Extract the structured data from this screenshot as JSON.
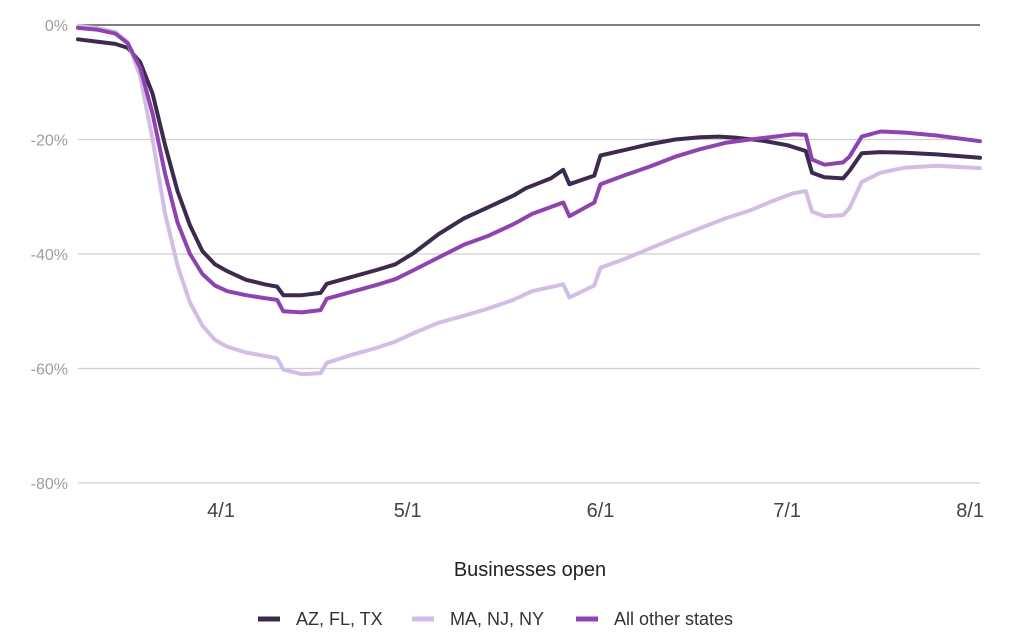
{
  "chart_data": {
    "type": "line",
    "xlabel": "Businesses open",
    "ylabel": "",
    "ylim": [
      -80,
      0
    ],
    "y_ticks": [
      {
        "value": 0,
        "label": "0%"
      },
      {
        "value": -20,
        "label": "-20%"
      },
      {
        "value": -40,
        "label": "-40%"
      },
      {
        "value": -60,
        "label": "-60%"
      },
      {
        "value": -80,
        "label": "-80%"
      }
    ],
    "x_ticks": [
      {
        "value": "2020-04-01",
        "label": "4/1"
      },
      {
        "value": "2020-05-01",
        "label": "5/1"
      },
      {
        "value": "2020-06-01",
        "label": "6/1"
      },
      {
        "value": "2020-07-01",
        "label": "7/1"
      },
      {
        "value": "2020-08-01",
        "label": "8/1"
      }
    ],
    "xlim": [
      "2020-03-09",
      "2020-08-01"
    ],
    "grid": true,
    "legend_position": "bottom",
    "series": [
      {
        "name": "AZ, FL, TX",
        "color": "#3d2a4f",
        "points": [
          [
            "2020-03-09",
            -2.5
          ],
          [
            "2020-03-12",
            -2.9
          ],
          [
            "2020-03-15",
            -3.3
          ],
          [
            "2020-03-17",
            -4.0
          ],
          [
            "2020-03-19",
            -6.5
          ],
          [
            "2020-03-21",
            -12.0
          ],
          [
            "2020-03-23",
            -21.0
          ],
          [
            "2020-03-25",
            -29.0
          ],
          [
            "2020-03-27",
            -35.0
          ],
          [
            "2020-03-29",
            -39.5
          ],
          [
            "2020-03-31",
            -41.8
          ],
          [
            "2020-04-02",
            -43.0
          ],
          [
            "2020-04-05",
            -44.5
          ],
          [
            "2020-04-08",
            -45.3
          ],
          [
            "2020-04-10",
            -45.7
          ],
          [
            "2020-04-11",
            -47.2
          ],
          [
            "2020-04-14",
            -47.2
          ],
          [
            "2020-04-17",
            -46.8
          ],
          [
            "2020-04-18",
            -45.2
          ],
          [
            "2020-04-22",
            -44.0
          ],
          [
            "2020-04-26",
            -42.8
          ],
          [
            "2020-04-29",
            -41.8
          ],
          [
            "2020-05-02",
            -39.8
          ],
          [
            "2020-05-06",
            -36.5
          ],
          [
            "2020-05-10",
            -33.8
          ],
          [
            "2020-05-14",
            -31.8
          ],
          [
            "2020-05-18",
            -29.8
          ],
          [
            "2020-05-20",
            -28.5
          ],
          [
            "2020-05-24",
            -26.8
          ],
          [
            "2020-05-26",
            -25.3
          ],
          [
            "2020-05-27",
            -27.8
          ],
          [
            "2020-05-31",
            -26.3
          ],
          [
            "2020-06-01",
            -22.8
          ],
          [
            "2020-06-05",
            -21.8
          ],
          [
            "2020-06-09",
            -20.8
          ],
          [
            "2020-06-13",
            -20.0
          ],
          [
            "2020-06-17",
            -19.6
          ],
          [
            "2020-06-20",
            -19.5
          ],
          [
            "2020-06-23",
            -19.7
          ],
          [
            "2020-06-27",
            -20.2
          ],
          [
            "2020-07-01",
            -21.0
          ],
          [
            "2020-07-04",
            -22.0
          ],
          [
            "2020-07-05",
            -25.8
          ],
          [
            "2020-07-07",
            -26.6
          ],
          [
            "2020-07-10",
            -26.8
          ],
          [
            "2020-07-11",
            -25.5
          ],
          [
            "2020-07-13",
            -22.4
          ],
          [
            "2020-07-16",
            -22.2
          ],
          [
            "2020-07-20",
            -22.3
          ],
          [
            "2020-07-25",
            -22.6
          ],
          [
            "2020-08-01",
            -23.2
          ]
        ]
      },
      {
        "name": "MA, NJ, NY",
        "color": "#d4bde4",
        "points": [
          [
            "2020-03-09",
            -0.2
          ],
          [
            "2020-03-12",
            -0.5
          ],
          [
            "2020-03-15",
            -1.2
          ],
          [
            "2020-03-17",
            -3.0
          ],
          [
            "2020-03-19",
            -9.0
          ],
          [
            "2020-03-21",
            -20.0
          ],
          [
            "2020-03-23",
            -33.0
          ],
          [
            "2020-03-25",
            -42.0
          ],
          [
            "2020-03-27",
            -48.5
          ],
          [
            "2020-03-29",
            -52.5
          ],
          [
            "2020-03-31",
            -55.0
          ],
          [
            "2020-04-02",
            -56.2
          ],
          [
            "2020-04-05",
            -57.2
          ],
          [
            "2020-04-08",
            -57.8
          ],
          [
            "2020-04-10",
            -58.2
          ],
          [
            "2020-04-11",
            -60.2
          ],
          [
            "2020-04-14",
            -61.0
          ],
          [
            "2020-04-17",
            -60.8
          ],
          [
            "2020-04-18",
            -59.0
          ],
          [
            "2020-04-22",
            -57.6
          ],
          [
            "2020-04-26",
            -56.4
          ],
          [
            "2020-04-29",
            -55.3
          ],
          [
            "2020-05-02",
            -53.8
          ],
          [
            "2020-05-06",
            -52.0
          ],
          [
            "2020-05-10",
            -50.8
          ],
          [
            "2020-05-14",
            -49.5
          ],
          [
            "2020-05-18",
            -48.0
          ],
          [
            "2020-05-21",
            -46.5
          ],
          [
            "2020-05-26",
            -45.3
          ],
          [
            "2020-05-27",
            -47.6
          ],
          [
            "2020-05-31",
            -45.5
          ],
          [
            "2020-06-01",
            -42.4
          ],
          [
            "2020-06-05",
            -40.8
          ],
          [
            "2020-06-09",
            -39.0
          ],
          [
            "2020-06-13",
            -37.2
          ],
          [
            "2020-06-17",
            -35.5
          ],
          [
            "2020-06-21",
            -33.8
          ],
          [
            "2020-06-25",
            -32.4
          ],
          [
            "2020-06-29",
            -30.6
          ],
          [
            "2020-07-02",
            -29.4
          ],
          [
            "2020-07-04",
            -29.0
          ],
          [
            "2020-07-05",
            -32.6
          ],
          [
            "2020-07-07",
            -33.4
          ],
          [
            "2020-07-10",
            -33.2
          ],
          [
            "2020-07-11",
            -32.0
          ],
          [
            "2020-07-13",
            -27.4
          ],
          [
            "2020-07-16",
            -25.8
          ],
          [
            "2020-07-20",
            -24.9
          ],
          [
            "2020-07-25",
            -24.6
          ],
          [
            "2020-08-01",
            -25.0
          ]
        ]
      },
      {
        "name": "All other states",
        "color": "#8e44b0",
        "points": [
          [
            "2020-03-09",
            -0.5
          ],
          [
            "2020-03-12",
            -0.8
          ],
          [
            "2020-03-15",
            -1.5
          ],
          [
            "2020-03-17",
            -3.2
          ],
          [
            "2020-03-19",
            -7.5
          ],
          [
            "2020-03-21",
            -15.5
          ],
          [
            "2020-03-23",
            -26.0
          ],
          [
            "2020-03-25",
            -34.5
          ],
          [
            "2020-03-27",
            -40.0
          ],
          [
            "2020-03-29",
            -43.5
          ],
          [
            "2020-03-31",
            -45.5
          ],
          [
            "2020-04-02",
            -46.5
          ],
          [
            "2020-04-05",
            -47.2
          ],
          [
            "2020-04-08",
            -47.7
          ],
          [
            "2020-04-10",
            -48.0
          ],
          [
            "2020-04-11",
            -50.0
          ],
          [
            "2020-04-14",
            -50.2
          ],
          [
            "2020-04-17",
            -49.8
          ],
          [
            "2020-04-18",
            -47.8
          ],
          [
            "2020-04-22",
            -46.6
          ],
          [
            "2020-04-26",
            -45.4
          ],
          [
            "2020-04-29",
            -44.4
          ],
          [
            "2020-05-02",
            -42.8
          ],
          [
            "2020-05-06",
            -40.6
          ],
          [
            "2020-05-10",
            -38.4
          ],
          [
            "2020-05-14",
            -36.8
          ],
          [
            "2020-05-18",
            -34.8
          ],
          [
            "2020-05-21",
            -33.0
          ],
          [
            "2020-05-26",
            -31.0
          ],
          [
            "2020-05-27",
            -33.4
          ],
          [
            "2020-05-31",
            -31.0
          ],
          [
            "2020-06-01",
            -27.8
          ],
          [
            "2020-06-05",
            -26.2
          ],
          [
            "2020-06-09",
            -24.7
          ],
          [
            "2020-06-13",
            -23.0
          ],
          [
            "2020-06-17",
            -21.7
          ],
          [
            "2020-06-21",
            -20.6
          ],
          [
            "2020-06-25",
            -20.0
          ],
          [
            "2020-06-29",
            -19.5
          ],
          [
            "2020-07-02",
            -19.1
          ],
          [
            "2020-07-04",
            -19.2
          ],
          [
            "2020-07-05",
            -23.5
          ],
          [
            "2020-07-07",
            -24.4
          ],
          [
            "2020-07-10",
            -24.0
          ],
          [
            "2020-07-11",
            -23.0
          ],
          [
            "2020-07-13",
            -19.5
          ],
          [
            "2020-07-16",
            -18.6
          ],
          [
            "2020-07-20",
            -18.8
          ],
          [
            "2020-07-25",
            -19.3
          ],
          [
            "2020-08-01",
            -20.3
          ]
        ]
      }
    ]
  }
}
